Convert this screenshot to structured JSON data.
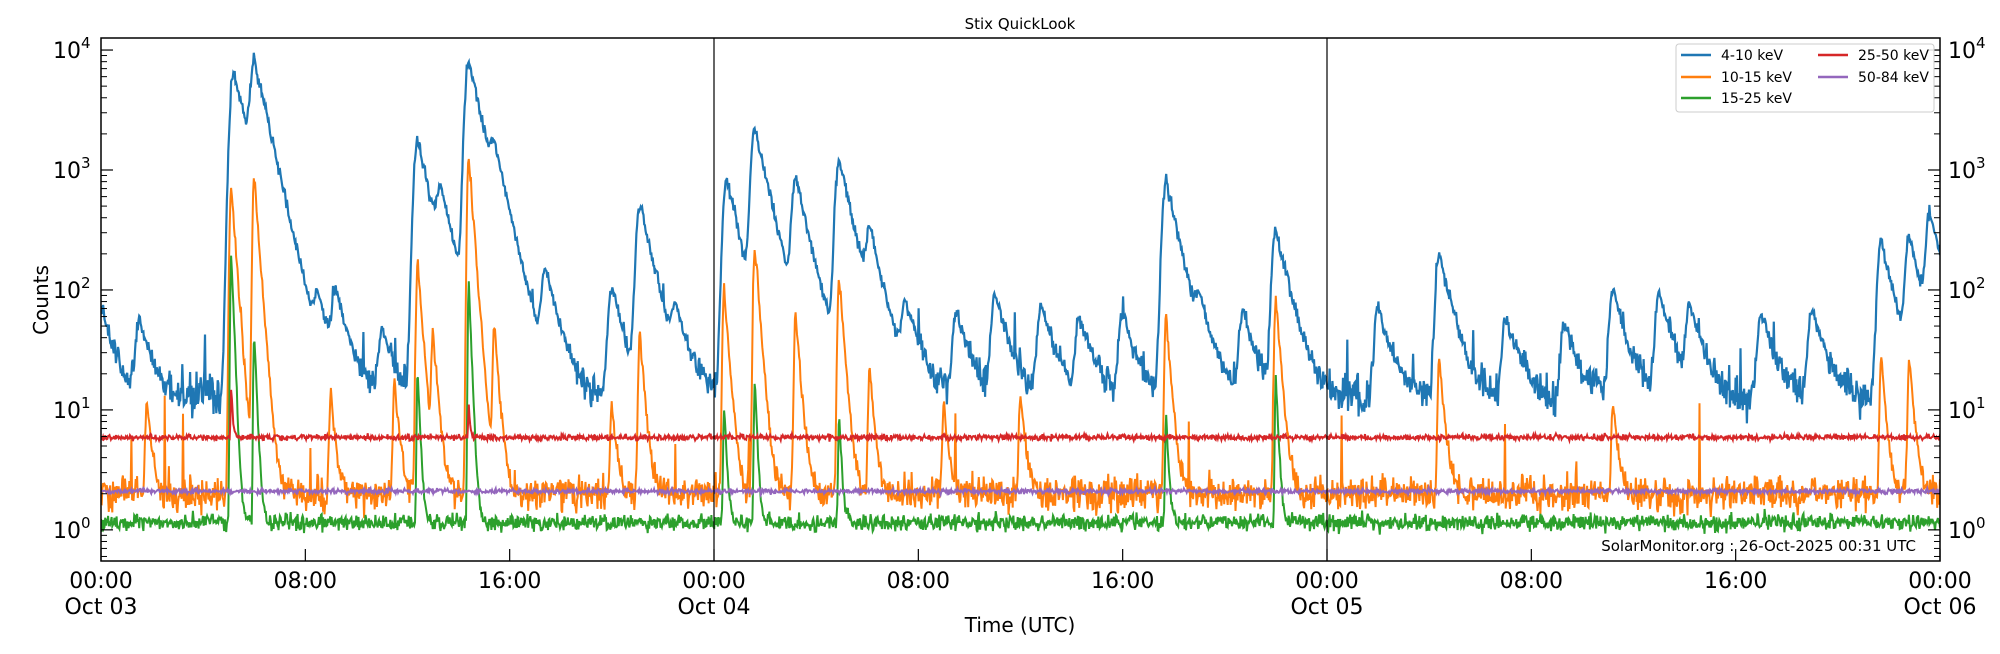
{
  "chart_data": {
    "type": "line",
    "title": "Stix QuickLook",
    "xlabel": "Time (UTC)",
    "ylabel": "Counts",
    "yscale": "log",
    "ylim": [
      0.55,
      12600
    ],
    "xlim_hours": [
      0,
      72
    ],
    "grid": false,
    "legend_position": "top-right",
    "y_ticks": [
      {
        "value": 1,
        "base": "10",
        "exp": "0"
      },
      {
        "value": 10,
        "base": "10",
        "exp": "1"
      },
      {
        "value": 100,
        "base": "10",
        "exp": "2"
      },
      {
        "value": 1000,
        "base": "10",
        "exp": "3"
      },
      {
        "value": 10000,
        "base": "10",
        "exp": "4"
      }
    ],
    "x_ticks": [
      {
        "hour": 0,
        "time": "00:00",
        "date": "Oct 03"
      },
      {
        "hour": 8,
        "time": "08:00",
        "date": ""
      },
      {
        "hour": 16,
        "time": "16:00",
        "date": ""
      },
      {
        "hour": 24,
        "time": "00:00",
        "date": "Oct 04"
      },
      {
        "hour": 32,
        "time": "08:00",
        "date": ""
      },
      {
        "hour": 40,
        "time": "16:00",
        "date": ""
      },
      {
        "hour": 48,
        "time": "00:00",
        "date": "Oct 05"
      },
      {
        "hour": 56,
        "time": "08:00",
        "date": ""
      },
      {
        "hour": 64,
        "time": "16:00",
        "date": ""
      },
      {
        "hour": 72,
        "time": "00:00",
        "date": "Oct 06"
      }
    ],
    "day_boundaries_hours": [
      24,
      48
    ],
    "series": [
      {
        "name": "4-10 keV",
        "color": "#1f77b4",
        "baseline": 13,
        "peaks": [
          [
            0,
            60
          ],
          [
            1.5,
            40
          ],
          [
            5.2,
            6700
          ],
          [
            6.0,
            7300
          ],
          [
            8.5,
            50
          ],
          [
            9.2,
            70
          ],
          [
            11.0,
            35
          ],
          [
            12.4,
            1800
          ],
          [
            13.3,
            500
          ],
          [
            14.4,
            8200
          ],
          [
            15.4,
            800
          ],
          [
            17.4,
            125
          ],
          [
            20.0,
            90
          ],
          [
            21.1,
            490
          ],
          [
            22.5,
            40
          ],
          [
            24.5,
            820
          ],
          [
            25.6,
            2200
          ],
          [
            27.2,
            800
          ],
          [
            28.9,
            1200
          ],
          [
            30.1,
            230
          ],
          [
            31.5,
            60
          ],
          [
            33.5,
            50
          ],
          [
            35.0,
            80
          ],
          [
            36.8,
            60
          ],
          [
            38.3,
            45
          ],
          [
            40.0,
            50
          ],
          [
            41.7,
            780
          ],
          [
            43.0,
            40
          ],
          [
            44.7,
            50
          ],
          [
            46.0,
            300
          ],
          [
            50.0,
            60
          ],
          [
            52.4,
            180
          ],
          [
            55.0,
            45
          ],
          [
            57.3,
            40
          ],
          [
            59.2,
            90
          ],
          [
            61.0,
            80
          ],
          [
            62.2,
            60
          ],
          [
            65.0,
            50
          ],
          [
            67.0,
            55
          ],
          [
            69.7,
            230
          ],
          [
            70.8,
            250
          ],
          [
            71.6,
            400
          ]
        ]
      },
      {
        "name": "10-15 keV",
        "color": "#ff7f0e",
        "baseline": 2.0,
        "peaks": [
          [
            1.8,
            10
          ],
          [
            5.1,
            700
          ],
          [
            6.0,
            900
          ],
          [
            9.0,
            12
          ],
          [
            11.5,
            15
          ],
          [
            12.4,
            170
          ],
          [
            13.0,
            40
          ],
          [
            14.4,
            1300
          ],
          [
            15.4,
            45
          ],
          [
            20.0,
            10
          ],
          [
            21.1,
            40
          ],
          [
            24.4,
            100
          ],
          [
            25.6,
            230
          ],
          [
            27.2,
            60
          ],
          [
            28.9,
            130
          ],
          [
            30.1,
            20
          ],
          [
            33.0,
            10
          ],
          [
            36.0,
            12
          ],
          [
            41.7,
            60
          ],
          [
            46.0,
            85
          ],
          [
            52.4,
            25
          ],
          [
            59.2,
            10
          ],
          [
            69.7,
            25
          ],
          [
            70.8,
            25
          ]
        ]
      },
      {
        "name": "15-25 keV",
        "color": "#2ca02c",
        "baseline": 1.15,
        "peaks": [
          [
            5.1,
            190
          ],
          [
            6.0,
            45
          ],
          [
            12.4,
            20
          ],
          [
            14.4,
            110
          ],
          [
            24.4,
            10
          ],
          [
            25.6,
            15
          ],
          [
            28.9,
            8
          ],
          [
            41.7,
            8
          ],
          [
            46.0,
            18
          ]
        ]
      },
      {
        "name": "25-50 keV",
        "color": "#d62728",
        "baseline": 5.9,
        "peaks": [
          [
            5.1,
            10
          ],
          [
            14.4,
            5
          ]
        ]
      },
      {
        "name": "50-84 keV",
        "color": "#9467bd",
        "baseline": 2.1,
        "peaks": []
      }
    ],
    "annotation": "SolarMonitor.org : 26-Oct-2025 00:31 UTC"
  }
}
